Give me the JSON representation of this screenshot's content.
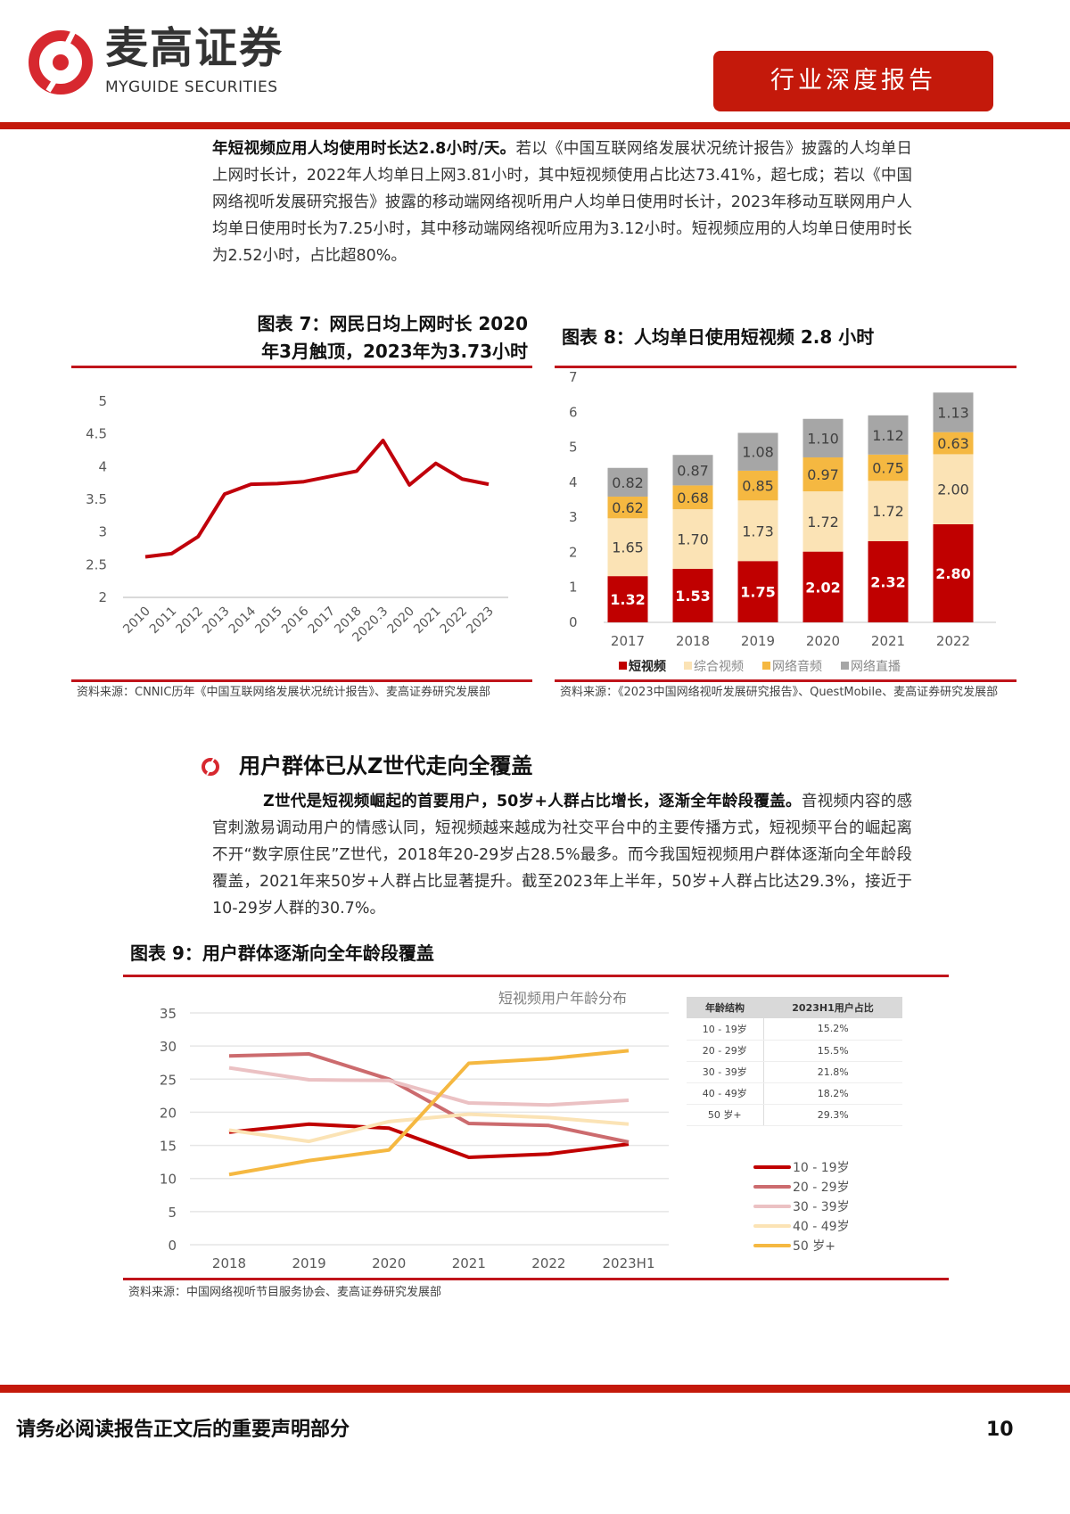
{
  "header": {
    "logo_cn": "麦高证券",
    "logo_en": "MYGUIDE SECURITIES",
    "badge": "行业深度报告"
  },
  "para1": {
    "bold": "年短视频应用人均使用时长达2.8小时/天。",
    "text": "若以《中国互联网络发展状况统计报告》披露的人均单日上网时长计，2022年人均单日上网3.81小时，其中短视频使用占比达73.41%，超七成；若以《中国网络视听发展研究报告》披露的移动端网络视听用户人均单日使用时长计，2023年移动互联网用户人均单日使用时长为7.25小时，其中移动端网络视听应用为3.12小时。短视频应用的人均单日使用时长为2.52小时，占比超80%。"
  },
  "fig7": {
    "title_line1": "图表 7：网民日均上网时长 2020",
    "title_line2": "年3月触顶，2023年为3.73小时",
    "source": "资料来源：CNNIC历年《中国互联网络发展状况统计报告》、麦高证券研究发展部"
  },
  "fig8": {
    "title": "图表 8：人均单日使用短视频 2.8 小时",
    "source": "资料来源：《2023中国网络视听发展研究报告》、QuestMobile、麦高证券研究发展部"
  },
  "section": {
    "heading": "用户群体已从Z世代走向全覆盖"
  },
  "para2": {
    "bold": "Z世代是短视频崛起的首要用户，50岁+人群占比增长，逐渐全年龄段覆盖。",
    "text": "音视频内容的感官刺激易调动用户的情感认同，短视频越来越成为社交平台中的主要传播方式，短视频平台的崛起离不开“数字原住民”Z世代，2018年20-29岁占28.5%最多。而今我国短视频用户群体逐渐向全年龄段覆盖，2021年来50岁+人群占比显著提升。截至2023年上半年，50岁+人群占比达29.3%，接近于10-29岁人群的30.7%。"
  },
  "fig9": {
    "title": "图表 9：用户群体逐渐向全年龄段覆盖",
    "source": "资料来源：中国网络视听节目服务协会、麦高证券研究发展部",
    "table": {
      "headers": [
        "年龄结构",
        "2023H1用户占比"
      ],
      "rows": [
        [
          "10 - 19岁",
          "15.2%"
        ],
        [
          "20 - 29岁",
          "15.5%"
        ],
        [
          "30 - 39岁",
          "21.8%"
        ],
        [
          "40 - 49岁",
          "18.2%"
        ],
        [
          "50 岁+",
          "29.3%"
        ]
      ]
    }
  },
  "footer": {
    "disclaimer": "请务必阅读报告正文后的重要声明部分",
    "page": "10"
  },
  "chart_data": [
    {
      "type": "line",
      "title": "图表 7：网民日均上网时长 2020年3月触顶，2023年为3.73小时",
      "categories": [
        "2010",
        "2011",
        "2012",
        "2013",
        "2014",
        "2015",
        "2016",
        "2017",
        "2018",
        "2020.3",
        "2020",
        "2021",
        "2022",
        "2023"
      ],
      "values": [
        2.62,
        2.67,
        2.93,
        3.58,
        3.73,
        3.74,
        3.77,
        3.85,
        3.93,
        4.4,
        3.72,
        4.05,
        3.81,
        3.73
      ],
      "ylim": [
        2,
        5
      ],
      "yticks": [
        "2",
        "2.5",
        "3",
        "3.5",
        "4",
        "4.5",
        "5"
      ],
      "color": "#c0000b"
    },
    {
      "type": "bar",
      "stacked": true,
      "title": "图表 8：人均单日使用短视频 2.8 小时",
      "categories": [
        "2017",
        "2018",
        "2019",
        "2020",
        "2021",
        "2022"
      ],
      "ylim": [
        0,
        7
      ],
      "yticks": [
        "0",
        "1",
        "2",
        "3",
        "4",
        "5",
        "6",
        "7"
      ],
      "legend": "bottom",
      "series": [
        {
          "name": "短视频",
          "color": "#c00000",
          "labels": [
            "1.32",
            "1.53",
            "1.75",
            "2.02",
            "2.32",
            "2.80"
          ],
          "values": [
            1.32,
            1.53,
            1.75,
            2.02,
            2.32,
            2.8
          ]
        },
        {
          "name": "综合视频",
          "color": "#fbe3b5",
          "labels": [
            "1.65",
            "1.70",
            "1.73",
            "1.72",
            "1.72",
            "2.00"
          ],
          "values": [
            1.65,
            1.7,
            1.73,
            1.72,
            1.72,
            2.0
          ]
        },
        {
          "name": "网络音频",
          "color": "#f5b841",
          "labels": [
            "0.62",
            "0.68",
            "0.85",
            "0.97",
            "0.75",
            "0.63"
          ],
          "values": [
            0.62,
            0.68,
            0.85,
            0.97,
            0.75,
            0.63
          ]
        },
        {
          "name": "网络直播",
          "color": "#a6a6a6",
          "labels": [
            "0.82",
            "0.87",
            "1.08",
            "1.10",
            "1.12",
            "1.13"
          ],
          "values": [
            0.82,
            0.87,
            1.08,
            1.1,
            1.12,
            1.13
          ]
        }
      ]
    },
    {
      "type": "line",
      "title": "短视频用户年龄分布",
      "categories": [
        "2018",
        "2019",
        "2020",
        "2021",
        "2022",
        "2023H1"
      ],
      "ylim": [
        0,
        35
      ],
      "yticks": [
        "0",
        "5",
        "10",
        "15",
        "20",
        "25",
        "30",
        "35"
      ],
      "legend": "right",
      "series": [
        {
          "name": "10 - 19岁",
          "color": "#c00000",
          "values": [
            17.0,
            18.2,
            17.6,
            13.2,
            13.7,
            15.2
          ]
        },
        {
          "name": "20 - 29岁",
          "color": "#cc6b6e",
          "values": [
            28.5,
            28.8,
            25.0,
            18.3,
            18.0,
            15.5
          ]
        },
        {
          "name": "30 - 39岁",
          "color": "#ebc1c3",
          "values": [
            26.7,
            24.9,
            24.8,
            21.4,
            21.1,
            21.8
          ]
        },
        {
          "name": "40 - 49岁",
          "color": "#fbe3b5",
          "values": [
            17.3,
            15.6,
            18.6,
            19.7,
            19.2,
            18.2
          ]
        },
        {
          "name": "50 岁+",
          "color": "#f5b841",
          "values": [
            10.6,
            12.7,
            14.3,
            27.4,
            28.1,
            29.3
          ]
        }
      ]
    }
  ]
}
